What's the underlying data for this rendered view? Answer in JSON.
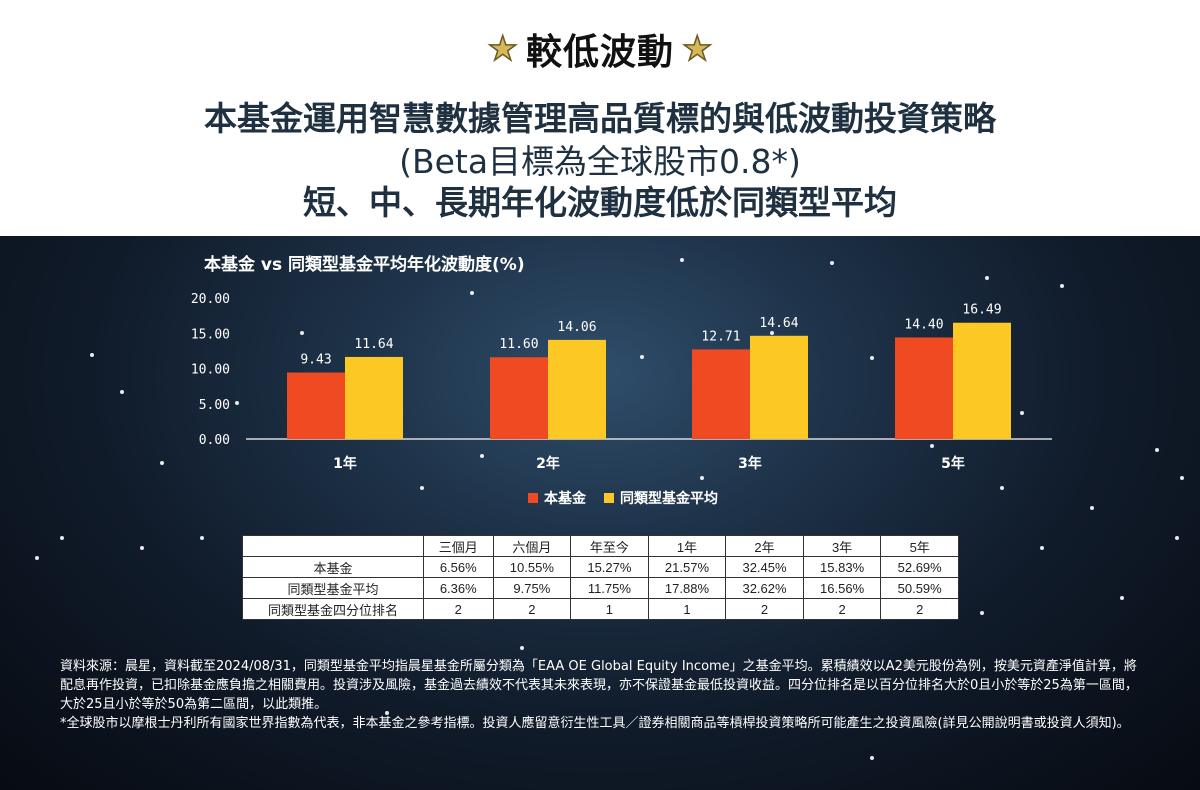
{
  "badge": {
    "text": "較低波動"
  },
  "headline": {
    "line1": "本基金運用智慧數據管理高品質標的與低波動投資策略",
    "line2": "(Beta目標為全球股市0.8*)",
    "line3": "短、中、長期年化波動度低於同類型平均"
  },
  "colors": {
    "fund": "#f04a23",
    "peer": "#fcc823"
  },
  "chart_data": {
    "type": "bar",
    "title": "本基金 vs 同類型基金平均年化波動度(%)",
    "categories": [
      "1年",
      "2年",
      "3年",
      "5年"
    ],
    "series": [
      {
        "name": "本基金",
        "values": [
          9.43,
          11.6,
          12.71,
          14.4
        ],
        "labels": [
          "9.43",
          "11.60",
          "12.71",
          "14.40"
        ]
      },
      {
        "name": "同類型基金平均",
        "values": [
          11.64,
          14.06,
          14.64,
          16.49
        ],
        "labels": [
          "11.64",
          "14.06",
          "14.64",
          "16.49"
        ]
      }
    ],
    "yticks": [
      "20.00",
      "15.00",
      "10.00",
      "5.00",
      "0.00"
    ],
    "ylim": [
      0,
      20
    ],
    "legend": "bottom-center",
    "grid": false
  },
  "table": {
    "headers": [
      "三個月",
      "六個月",
      "年至今",
      "1年",
      "2年",
      "3年",
      "5年"
    ],
    "rows": [
      {
        "label": "本基金",
        "values": [
          "6.56%",
          "10.55%",
          "15.27%",
          "21.57%",
          "32.45%",
          "15.83%",
          "52.69%"
        ]
      },
      {
        "label": "同類型基金平均",
        "values": [
          "6.36%",
          "9.75%",
          "11.75%",
          "17.88%",
          "32.62%",
          "16.56%",
          "50.59%"
        ]
      },
      {
        "label": "同類型基金四分位排名",
        "values": [
          "2",
          "2",
          "1",
          "1",
          "2",
          "2",
          "2"
        ]
      }
    ]
  },
  "notes": {
    "p1": "資料來源：晨星，資料截至2024/08/31，同類型基金平均指晨星基金所屬分類為「EAA OE Global Equity Income」之基金平均。累積績效以A2美元股份為例，按美元資產淨值計算，將配息再作投資，已扣除基金應負擔之相關費用。投資涉及風險，基金過去績效不代表其未來表現，亦不保證基金最低投資收益。四分位排名是以百分位排名大於0且小於等於25為第一區間，大於25且小於等於50為第二區間，以此類推。",
    "p2": "*全球股市以摩根士丹利所有國家世界指數為代表，非本基金之參考指標。投資人應留意衍生性工具／證券相關商品等槓桿投資策略所可能產生之投資風險(詳見公開說明書或投資人須知)。"
  }
}
